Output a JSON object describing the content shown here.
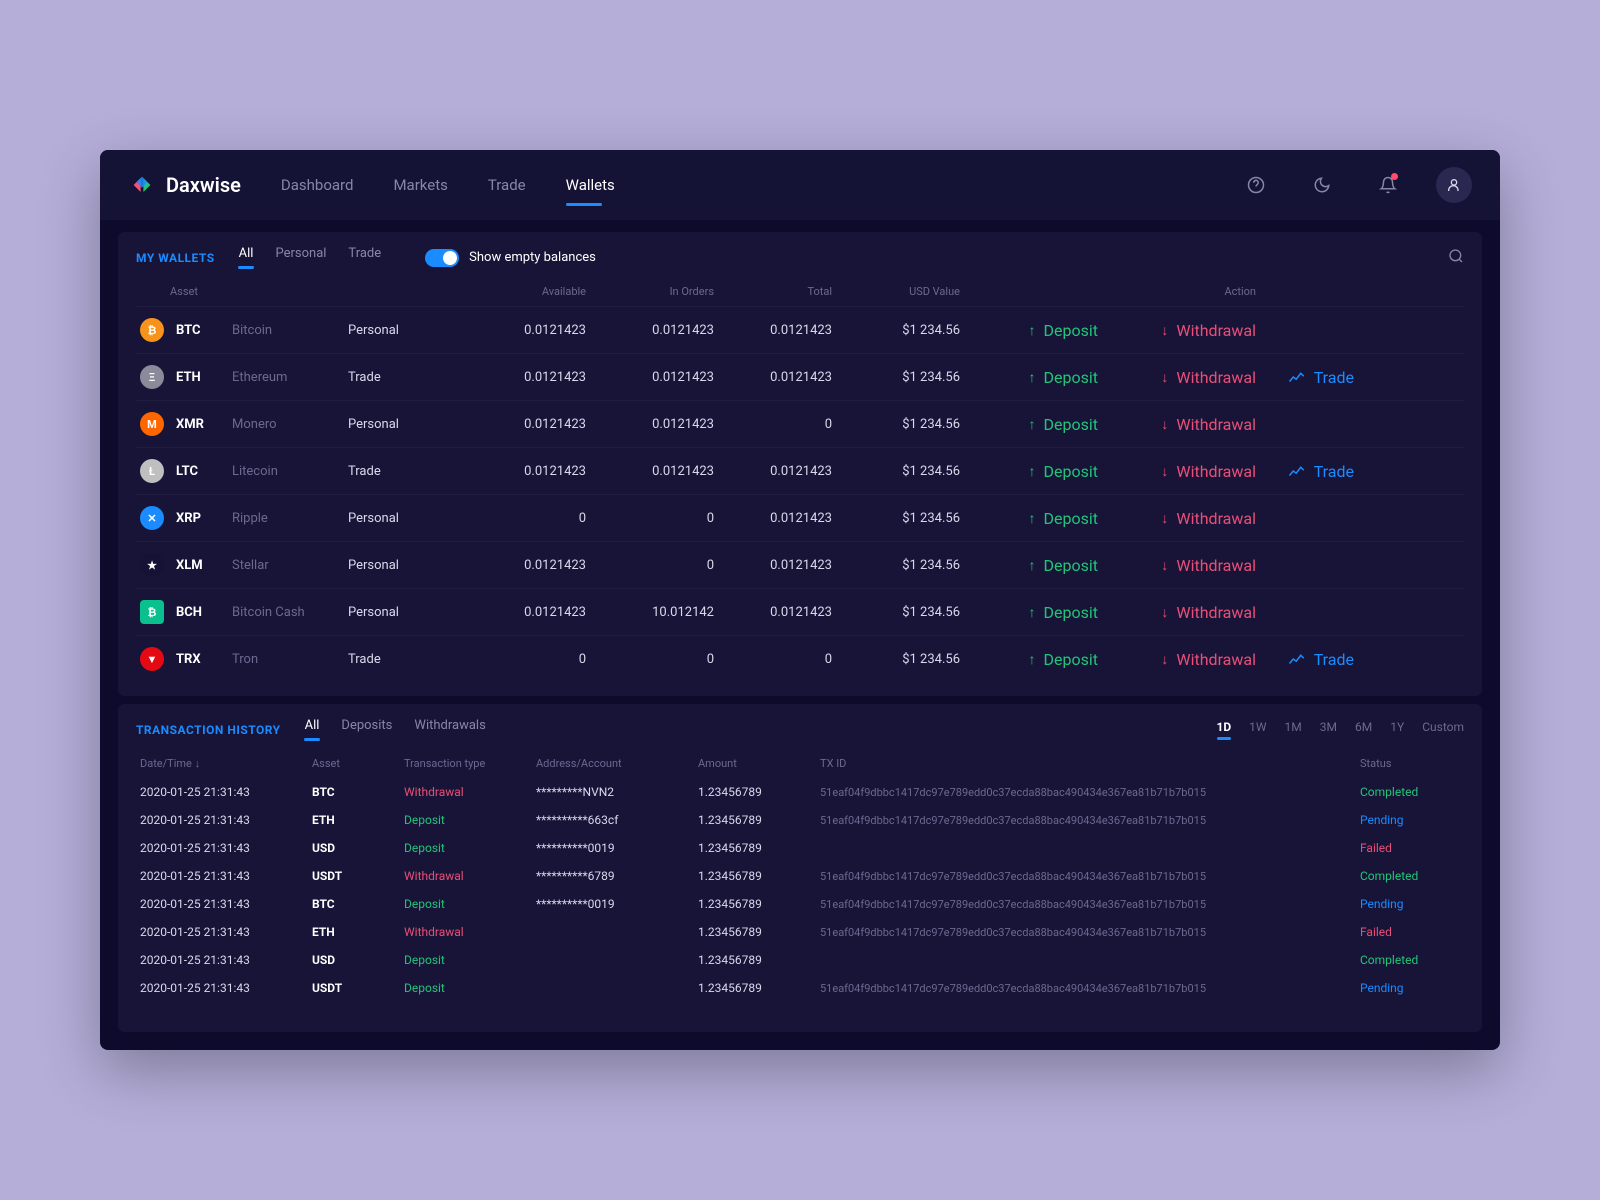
{
  "brand": "Daxwise",
  "nav": [
    {
      "label": "Dashboard"
    },
    {
      "label": "Markets"
    },
    {
      "label": "Trade"
    },
    {
      "label": "Wallets",
      "active": true
    }
  ],
  "wallets": {
    "title": "MY WALLETS",
    "tabs": [
      {
        "label": "All",
        "active": true
      },
      {
        "label": "Personal"
      },
      {
        "label": "Trade"
      }
    ],
    "toggle_label": "Show empty balances",
    "headers": [
      "Asset",
      "",
      "Available",
      "In Orders",
      "Total",
      "USD Value",
      "",
      "Action",
      ""
    ],
    "rows": [
      {
        "sym": "BTC",
        "name": "Bitcoin",
        "type": "Personal",
        "available": "0.0121423",
        "in_orders": "0.0121423",
        "total": "0.0121423",
        "usd": "$1 234.56",
        "trade": false,
        "coin_bg": "#f7931a",
        "coin_txt": "₿"
      },
      {
        "sym": "ETH",
        "name": "Ethereum",
        "type": "Trade",
        "available": "0.0121423",
        "in_orders": "0.0121423",
        "total": "0.0121423",
        "usd": "$1 234.56",
        "trade": true,
        "coin_bg": "#8a8a9a",
        "coin_txt": "Ξ"
      },
      {
        "sym": "XMR",
        "name": "Monero",
        "type": "Personal",
        "available": "0.0121423",
        "in_orders": "0.0121423",
        "total": "0",
        "usd": "$1 234.56",
        "trade": false,
        "coin_bg": "#ff6600",
        "coin_txt": "M"
      },
      {
        "sym": "LTC",
        "name": "Litecoin",
        "type": "Trade",
        "available": "0.0121423",
        "in_orders": "0.0121423",
        "total": "0.0121423",
        "usd": "$1 234.56",
        "trade": true,
        "coin_bg": "#bfbfbf",
        "coin_txt": "Ł"
      },
      {
        "sym": "XRP",
        "name": "Ripple",
        "type": "Personal",
        "available": "0",
        "in_orders": "0",
        "total": "0.0121423",
        "usd": "$1 234.56",
        "trade": false,
        "coin_bg": "#1a8cff",
        "coin_txt": "✕"
      },
      {
        "sym": "XLM",
        "name": "Stellar",
        "type": "Personal",
        "available": "0.0121423",
        "in_orders": "0",
        "total": "0.0121423",
        "usd": "$1 234.56",
        "trade": false,
        "coin_bg": "#141235",
        "coin_txt": "★"
      },
      {
        "sym": "BCH",
        "name": "Bitcoin Cash",
        "type": "Personal",
        "available": "0.0121423",
        "in_orders": "10.012142",
        "total": "0.0121423",
        "usd": "$1 234.56",
        "trade": false,
        "coin_bg": "#0ac18e",
        "coin_txt": "₿",
        "square": true
      },
      {
        "sym": "TRX",
        "name": "Tron",
        "type": "Trade",
        "available": "0",
        "in_orders": "0",
        "total": "0",
        "usd": "$1 234.56",
        "trade": true,
        "coin_bg": "#e50914",
        "coin_txt": "▼"
      }
    ],
    "actions": {
      "deposit": "Deposit",
      "withdrawal": "Withdrawal",
      "trade": "Trade"
    }
  },
  "history": {
    "title": "TRANSACTION HISTORY",
    "tabs": [
      {
        "label": "All",
        "active": true
      },
      {
        "label": "Deposits"
      },
      {
        "label": "Withdrawals"
      }
    ],
    "ranges": [
      {
        "label": "1D",
        "active": true
      },
      {
        "label": "1W"
      },
      {
        "label": "1M"
      },
      {
        "label": "3M"
      },
      {
        "label": "6M"
      },
      {
        "label": "1Y"
      },
      {
        "label": "Custom"
      }
    ],
    "headers": [
      "Date/Time ↓",
      "Asset",
      "Transaction type",
      "Address/Account",
      "Amount",
      "TX ID",
      "Status"
    ],
    "rows": [
      {
        "dt": "2020-01-25 21:31:43",
        "asset": "BTC",
        "type": "Withdrawal",
        "type_cls": "withdrawal",
        "addr": "*********NVN2",
        "amount": "1.23456789",
        "txid": "51eaf04f9dbbc1417dc97e789edd0c37ecda88bac490434e367ea81b71b7b015",
        "status": "Completed",
        "status_cls": "status-completed"
      },
      {
        "dt": "2020-01-25 21:31:43",
        "asset": "ETH",
        "type": "Deposit",
        "type_cls": "deposit",
        "addr": "**********663cf",
        "amount": "1.23456789",
        "txid": "51eaf04f9dbbc1417dc97e789edd0c37ecda88bac490434e367ea81b71b7b015",
        "status": "Pending",
        "status_cls": "status-pending"
      },
      {
        "dt": "2020-01-25 21:31:43",
        "asset": "USD",
        "type": "Deposit",
        "type_cls": "deposit",
        "addr": "**********0019",
        "amount": "1.23456789",
        "txid": "",
        "status": "Failed",
        "status_cls": "status-failed"
      },
      {
        "dt": "2020-01-25 21:31:43",
        "asset": "USDT",
        "type": "Withdrawal",
        "type_cls": "withdrawal",
        "addr": "**********6789",
        "amount": "1.23456789",
        "txid": "51eaf04f9dbbc1417dc97e789edd0c37ecda88bac490434e367ea81b71b7b015",
        "status": "Completed",
        "status_cls": "status-completed"
      },
      {
        "dt": "2020-01-25 21:31:43",
        "asset": "BTC",
        "type": "Deposit",
        "type_cls": "deposit",
        "addr": "**********0019",
        "amount": "1.23456789",
        "txid": "51eaf04f9dbbc1417dc97e789edd0c37ecda88bac490434e367ea81b71b7b015",
        "status": "Pending",
        "status_cls": "status-pending"
      },
      {
        "dt": "2020-01-25 21:31:43",
        "asset": "ETH",
        "type": "Withdrawal",
        "type_cls": "withdrawal",
        "addr": "",
        "amount": "1.23456789",
        "txid": "51eaf04f9dbbc1417dc97e789edd0c37ecda88bac490434e367ea81b71b7b015",
        "status": "Failed",
        "status_cls": "status-failed"
      },
      {
        "dt": "2020-01-25 21:31:43",
        "asset": "USD",
        "type": "Deposit",
        "type_cls": "deposit",
        "addr": "",
        "amount": "1.23456789",
        "txid": "",
        "status": "Completed",
        "status_cls": "status-completed"
      },
      {
        "dt": "2020-01-25 21:31:43",
        "asset": "USDT",
        "type": "Deposit",
        "type_cls": "deposit",
        "addr": "",
        "amount": "1.23456789",
        "txid": "51eaf04f9dbbc1417dc97e789edd0c37ecda88bac490434e367ea81b71b7b015",
        "status": "Pending",
        "status_cls": "status-pending"
      }
    ]
  }
}
